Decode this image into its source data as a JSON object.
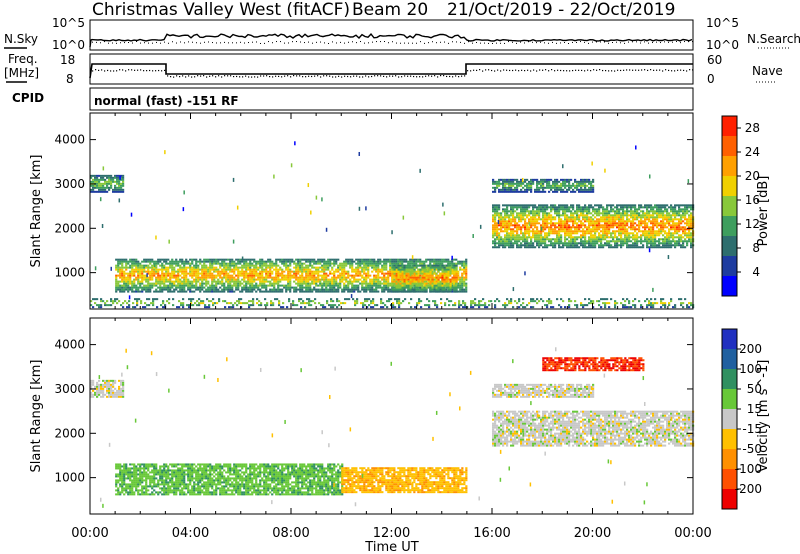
{
  "header": {
    "station": "Christmas Valley West (fitACF)",
    "beam": "Beam 20",
    "dates": "21/Oct/2019 - 22/Oct/2019"
  },
  "noise_panel": {
    "left_label": "N.Sky",
    "left_ticks": [
      "10^5",
      "10^0"
    ],
    "right_label": "N.Search",
    "right_ticks": [
      "10^5",
      "10^0"
    ]
  },
  "freq_panel": {
    "left_label_1": "Freq.",
    "left_label_2": "[MHz]",
    "left_ticks": [
      "18",
      "8"
    ],
    "right_label": "Nave",
    "right_ticks": [
      "60",
      "0"
    ],
    "cpid_label": "CPID",
    "cpid_text": "normal (fast) -151 RF"
  },
  "colors": {
    "power_scale": [
      "#0000ff",
      "#1e3ca0",
      "#2e6e6e",
      "#3e9e5e",
      "#88c83a",
      "#f0d000",
      "#ffa000",
      "#ff6000",
      "#ff2000"
    ],
    "velocity_scale": [
      "#2030c0",
      "#2060a0",
      "#309060",
      "#68c838",
      "#c8c8c8",
      "#ffc000",
      "#ff9000",
      "#ff5000",
      "#ee0000"
    ]
  },
  "chart_data": [
    {
      "type": "heatmap",
      "title": "",
      "xlabel": "",
      "ylabel": "Slant Range [km]",
      "x_ticks": [
        "00:00",
        "04:00",
        "08:00",
        "12:00",
        "16:00",
        "20:00",
        "00:00"
      ],
      "x_range_hours": [
        0,
        24
      ],
      "y_range_km": [
        180,
        4600
      ],
      "y_ticks": [
        1000,
        2000,
        3000,
        4000
      ],
      "colorbar_label": "Power [dB]",
      "colorbar_ticks": [
        "4",
        "8",
        "12",
        "16",
        "20",
        "24",
        "28"
      ],
      "colorbar_range": [
        0,
        30
      ],
      "echo_regions": [
        {
          "name": "early near-range band",
          "t_start": 1.0,
          "t_end": 15.0,
          "range_km": [
            550,
            1300
          ],
          "peak_db": 26
        },
        {
          "name": "midday intensification",
          "t_start": 12.0,
          "t_end": 14.6,
          "range_km": [
            550,
            1150
          ],
          "peak_db": 28
        },
        {
          "name": "early far-range patch",
          "t_start": 0.0,
          "t_end": 1.3,
          "range_km": [
            2800,
            3200
          ],
          "peak_db": 18
        },
        {
          "name": "evening band",
          "t_start": 16.0,
          "t_end": 24.0,
          "range_km": [
            1550,
            2500
          ],
          "peak_db": 28
        },
        {
          "name": "evening far range",
          "t_start": 16.0,
          "t_end": 20.0,
          "range_km": [
            2800,
            3100
          ],
          "peak_db": 16
        },
        {
          "name": "ground clutter",
          "t_start": 0.0,
          "t_end": 24.0,
          "range_km": [
            200,
            400
          ],
          "peak_db": 20
        }
      ]
    },
    {
      "type": "heatmap",
      "title": "",
      "xlabel": "Time UT",
      "ylabel": "Slant Range [km]",
      "x_ticks": [
        "00:00",
        "04:00",
        "08:00",
        "12:00",
        "16:00",
        "20:00",
        "00:00"
      ],
      "x_range_hours": [
        0,
        24
      ],
      "y_range_km": [
        180,
        4600
      ],
      "y_ticks": [
        1000,
        2000,
        3000,
        4000
      ],
      "colorbar_label": "Velocity [m s^-1]",
      "colorbar_ticks": [
        "200",
        "100",
        "50",
        "15",
        "-15",
        "-50",
        "-100",
        "-200"
      ],
      "echo_regions": [
        {
          "name": "early band",
          "t_start": 1.0,
          "t_end": 10.0,
          "range_km": [
            600,
            1300
          ],
          "velocity_ms": 40
        },
        {
          "name": "midday band",
          "t_start": 10.0,
          "t_end": 15.0,
          "range_km": [
            650,
            1200
          ],
          "velocity_ms": -40
        },
        {
          "name": "early far-range patch",
          "t_start": 0.0,
          "t_end": 1.3,
          "range_km": [
            2800,
            3200
          ],
          "velocity_ms": 0
        },
        {
          "name": "evening band",
          "t_start": 16.0,
          "t_end": 24.0,
          "range_km": [
            1700,
            2500
          ],
          "velocity_ms": 0
        },
        {
          "name": "evening far range",
          "t_start": 16.0,
          "t_end": 20.0,
          "range_km": [
            2800,
            3100
          ],
          "velocity_ms": 0
        },
        {
          "name": "evening high range",
          "t_start": 18.0,
          "t_end": 22.0,
          "range_km": [
            3400,
            3700
          ],
          "velocity_ms": -200
        }
      ]
    }
  ]
}
